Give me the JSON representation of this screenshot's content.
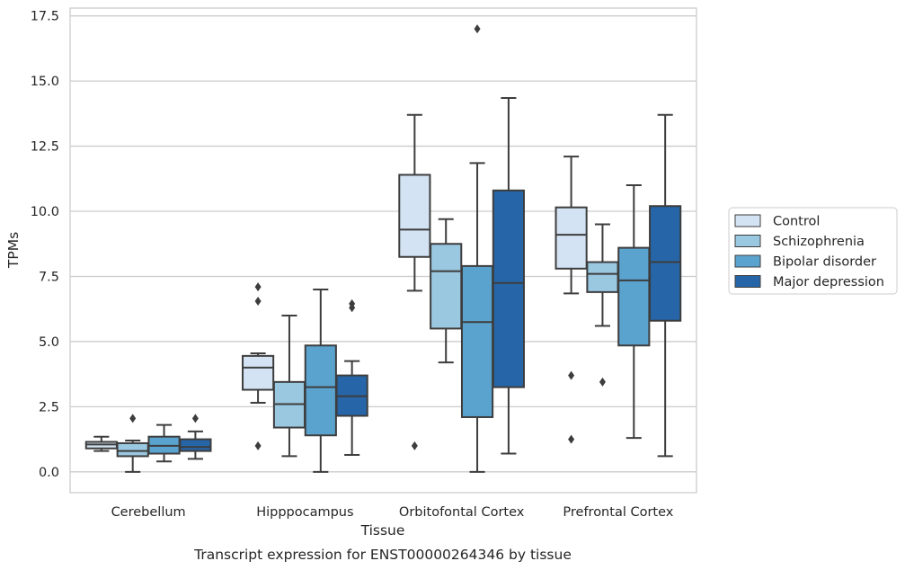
{
  "chart_data": {
    "type": "box",
    "caption": "Transcript expression for ENST00000264346 by tissue",
    "xlabel": "Tissue",
    "ylabel": "TPMs",
    "ylim": [
      -0.8,
      17.8
    ],
    "yticks": [
      0.0,
      2.5,
      5.0,
      7.5,
      10.0,
      12.5,
      15.0,
      17.5
    ],
    "ytick_labels": [
      "0.0",
      "2.5",
      "5.0",
      "7.5",
      "10.0",
      "12.5",
      "15.0",
      "17.5"
    ],
    "grid": "horizontal",
    "legend_position": "right",
    "categories": [
      "Cerebellum",
      "Hipppocampus",
      "Orbitofontal Cortex",
      "Prefrontal Cortex"
    ],
    "series": [
      {
        "name": "Control",
        "color": "#d3e3f3",
        "boxes": [
          {
            "whislo": 0.8,
            "q1": 0.9,
            "med": 1.05,
            "q3": 1.15,
            "whishi": 1.35,
            "fliers": []
          },
          {
            "whislo": 2.65,
            "q1": 3.15,
            "med": 4.0,
            "q3": 4.45,
            "whishi": 4.55,
            "fliers": [
              7.1,
              6.55,
              1.0
            ]
          },
          {
            "whislo": 6.95,
            "q1": 8.25,
            "med": 9.3,
            "q3": 11.4,
            "whishi": 13.7,
            "fliers": [
              1.0
            ]
          },
          {
            "whislo": 6.85,
            "q1": 7.8,
            "med": 9.1,
            "q3": 10.15,
            "whishi": 12.1,
            "fliers": [
              3.7,
              1.25
            ]
          }
        ]
      },
      {
        "name": "Schizophrenia",
        "color": "#9ac8e0",
        "boxes": [
          {
            "whislo": 0.0,
            "q1": 0.6,
            "med": 0.8,
            "q3": 1.1,
            "whishi": 1.2,
            "fliers": [
              2.05
            ]
          },
          {
            "whislo": 0.6,
            "q1": 1.7,
            "med": 2.6,
            "q3": 3.45,
            "whishi": 6.0,
            "fliers": []
          },
          {
            "whislo": 4.2,
            "q1": 5.5,
            "med": 7.7,
            "q3": 8.75,
            "whishi": 9.7,
            "fliers": []
          },
          {
            "whislo": 5.6,
            "q1": 6.9,
            "med": 7.6,
            "q3": 8.05,
            "whishi": 9.5,
            "fliers": [
              3.45
            ]
          }
        ]
      },
      {
        "name": "Bipolar disorder",
        "color": "#5ba3cf",
        "boxes": [
          {
            "whislo": 0.4,
            "q1": 0.7,
            "med": 1.0,
            "q3": 1.35,
            "whishi": 1.8,
            "fliers": []
          },
          {
            "whislo": 0.0,
            "q1": 1.4,
            "med": 3.25,
            "q3": 4.85,
            "whishi": 7.0,
            "fliers": []
          },
          {
            "whislo": 0.0,
            "q1": 2.1,
            "med": 5.75,
            "q3": 7.9,
            "whishi": 11.85,
            "fliers": [
              17.0
            ]
          },
          {
            "whislo": 1.3,
            "q1": 4.85,
            "med": 7.35,
            "q3": 8.6,
            "whishi": 11.0,
            "fliers": []
          }
        ]
      },
      {
        "name": "Major depression",
        "color": "#2666a8",
        "boxes": [
          {
            "whislo": 0.5,
            "q1": 0.8,
            "med": 0.95,
            "q3": 1.25,
            "whishi": 1.55,
            "fliers": [
              2.05
            ]
          },
          {
            "whislo": 0.65,
            "q1": 2.15,
            "med": 2.9,
            "q3": 3.7,
            "whishi": 4.25,
            "fliers": [
              6.45,
              6.3
            ]
          },
          {
            "whislo": 0.7,
            "q1": 3.25,
            "med": 7.25,
            "q3": 10.8,
            "whishi": 14.35,
            "fliers": []
          },
          {
            "whislo": 0.6,
            "q1": 5.8,
            "med": 8.05,
            "q3": 10.2,
            "whishi": 13.7,
            "fliers": []
          }
        ]
      }
    ]
  },
  "colors": {
    "edge": "#3d3d3d",
    "grid": "#cccccc",
    "frame": "#cccccc",
    "text": "#262626"
  }
}
